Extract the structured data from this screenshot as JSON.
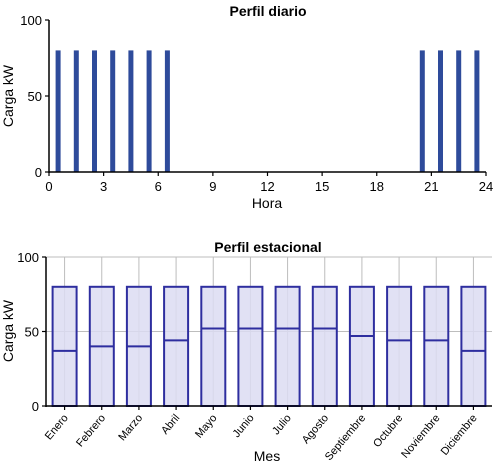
{
  "colors": {
    "bar": "#2e4b9b",
    "box_fill": "#dcdcf2",
    "box_stroke": "#2e2e9f",
    "grid": "#bdbdbd",
    "axis": "#000000"
  },
  "chart_data": [
    {
      "type": "bar",
      "title": "Perfil diario",
      "xlabel": "Hora",
      "ylabel": "Carga kW",
      "xlim": [
        0,
        24
      ],
      "ylim": [
        0,
        100
      ],
      "xticks": [
        0,
        3,
        6,
        9,
        12,
        15,
        18,
        21,
        24
      ],
      "yticks": [
        0,
        50,
        100
      ],
      "grid": false,
      "x": [
        0.5,
        1.5,
        2.5,
        3.5,
        4.5,
        5.5,
        6.5,
        20.5,
        21.5,
        22.5,
        23.5
      ],
      "values": [
        80,
        80,
        80,
        80,
        80,
        80,
        80,
        80,
        80,
        80,
        80
      ]
    },
    {
      "type": "box",
      "title": "Perfil estacional",
      "xlabel": "Mes",
      "ylabel": "Carga kW",
      "ylim": [
        0,
        100
      ],
      "yticks": [
        0,
        50,
        100
      ],
      "grid": true,
      "categories": [
        "Enero",
        "Febrero",
        "Marzo",
        "Abril",
        "Mayo",
        "Junio",
        "Julio",
        "Agosto",
        "Septiembre",
        "Octubre",
        "Noviembre",
        "Diciembre"
      ],
      "min": [
        0,
        0,
        0,
        0,
        0,
        0,
        0,
        0,
        0,
        0,
        0,
        0
      ],
      "max": [
        80,
        80,
        80,
        80,
        80,
        80,
        80,
        80,
        80,
        80,
        80,
        80
      ],
      "median": [
        37,
        40,
        40,
        44,
        52,
        52,
        52,
        52,
        47,
        44,
        44,
        37
      ]
    }
  ]
}
